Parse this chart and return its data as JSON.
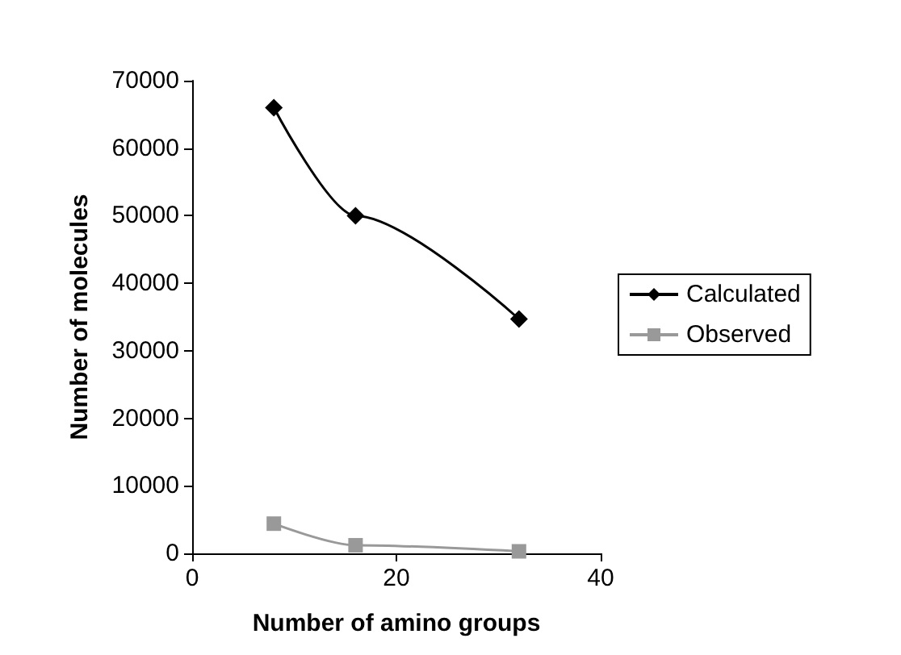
{
  "chart_data": {
    "type": "line",
    "xlabel": "Number of amino groups",
    "ylabel": "Number of molecules",
    "series": [
      {
        "name": "Calculated",
        "color": "#000000",
        "marker": "diamond",
        "x": [
          8,
          16,
          32
        ],
        "values": [
          66000,
          50000,
          34700
        ]
      },
      {
        "name": "Observed",
        "color": "#999999",
        "marker": "square",
        "x": [
          8,
          16,
          32
        ],
        "values": [
          4400,
          1200,
          300
        ]
      }
    ],
    "xlim": [
      0,
      40
    ],
    "xticks": [
      0,
      20,
      40
    ],
    "ylim": [
      0,
      70000
    ],
    "yticks": [
      0,
      10000,
      20000,
      30000,
      40000,
      50000,
      60000,
      70000
    ],
    "grid": false,
    "legend": "right",
    "line_style": "solid"
  }
}
